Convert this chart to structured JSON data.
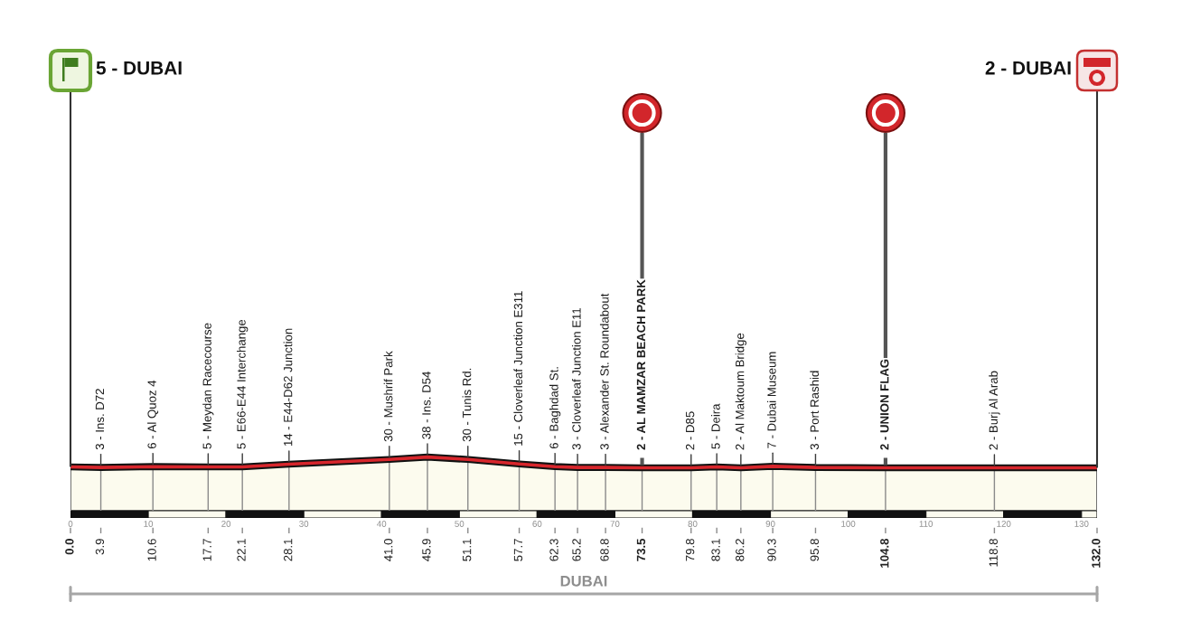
{
  "chart_data": {
    "type": "line",
    "x": [
      0,
      3.9,
      10.6,
      17.7,
      22.1,
      28.1,
      41.0,
      45.9,
      51.1,
      57.7,
      62.3,
      65.2,
      68.8,
      73.5,
      79.8,
      83.1,
      86.2,
      90.3,
      95.8,
      104.8,
      118.8,
      132
    ],
    "values": [
      5,
      3,
      6,
      5,
      5,
      14,
      30,
      38,
      30,
      15,
      6,
      3,
      3,
      2,
      2,
      5,
      2,
      7,
      3,
      2,
      2,
      2
    ],
    "value_labels": [
      null,
      "3 - Ins. D72",
      "6 - Al Quoz 4",
      "5 - Meydan Racecourse",
      "5 - E66-E44 Interchange",
      "14 - E44-D62 Junction",
      "30 - Mushrif Park",
      "38 - Ins. D54",
      "30 - Tunis Rd.",
      "15 - Cloverleaf Junction E311",
      "6 - Baghdad St.",
      "3 - Cloverleaf Junction E11",
      "3 - Alexander St. Roundabout",
      "2 - AL MAMZAR BEACH PARK",
      "2 - D85",
      "5 - Deira",
      "2 - Al Maktoum Bridge",
      "7 - Dubai Museum",
      "3 - Port Rashid",
      "2 - UNION FLAG",
      "2 - Burj Al Arab",
      null
    ],
    "color": "#d7262c",
    "xlim": [
      0,
      132
    ],
    "xticks": [
      0,
      10,
      20,
      30,
      40,
      50,
      60,
      70,
      80,
      90,
      100,
      110,
      120,
      130
    ],
    "x2lim": [
      0,
      132
    ],
    "x2ticks": [
      {
        "value": 0,
        "label": "0.0"
      },
      3.9,
      10.6,
      17.7,
      22.1,
      28.1,
      {
        "value": 41,
        "label": "41.0"
      },
      45.9,
      51.1,
      57.7,
      62.3,
      65.2,
      68.8,
      73.5,
      79.8,
      83.1,
      86.2,
      90.3,
      95.8,
      104.8,
      118.8,
      {
        "value": 132,
        "label": "132.0"
      }
    ],
    "ref_lines": [
      {
        "axis": "x",
        "value": 0,
        "label": "5 - DUBAI",
        "color": "#333333"
      },
      {
        "axis": "x",
        "value": 73.5,
        "color": "#555555"
      },
      {
        "axis": "x",
        "value": 104.8,
        "color": "#555555"
      },
      {
        "axis": "x",
        "value": 132,
        "label": "2 - DUBAI",
        "color": "#333333"
      }
    ],
    "annotations": [
      "DUBAI"
    ],
    "grid": "x"
  }
}
